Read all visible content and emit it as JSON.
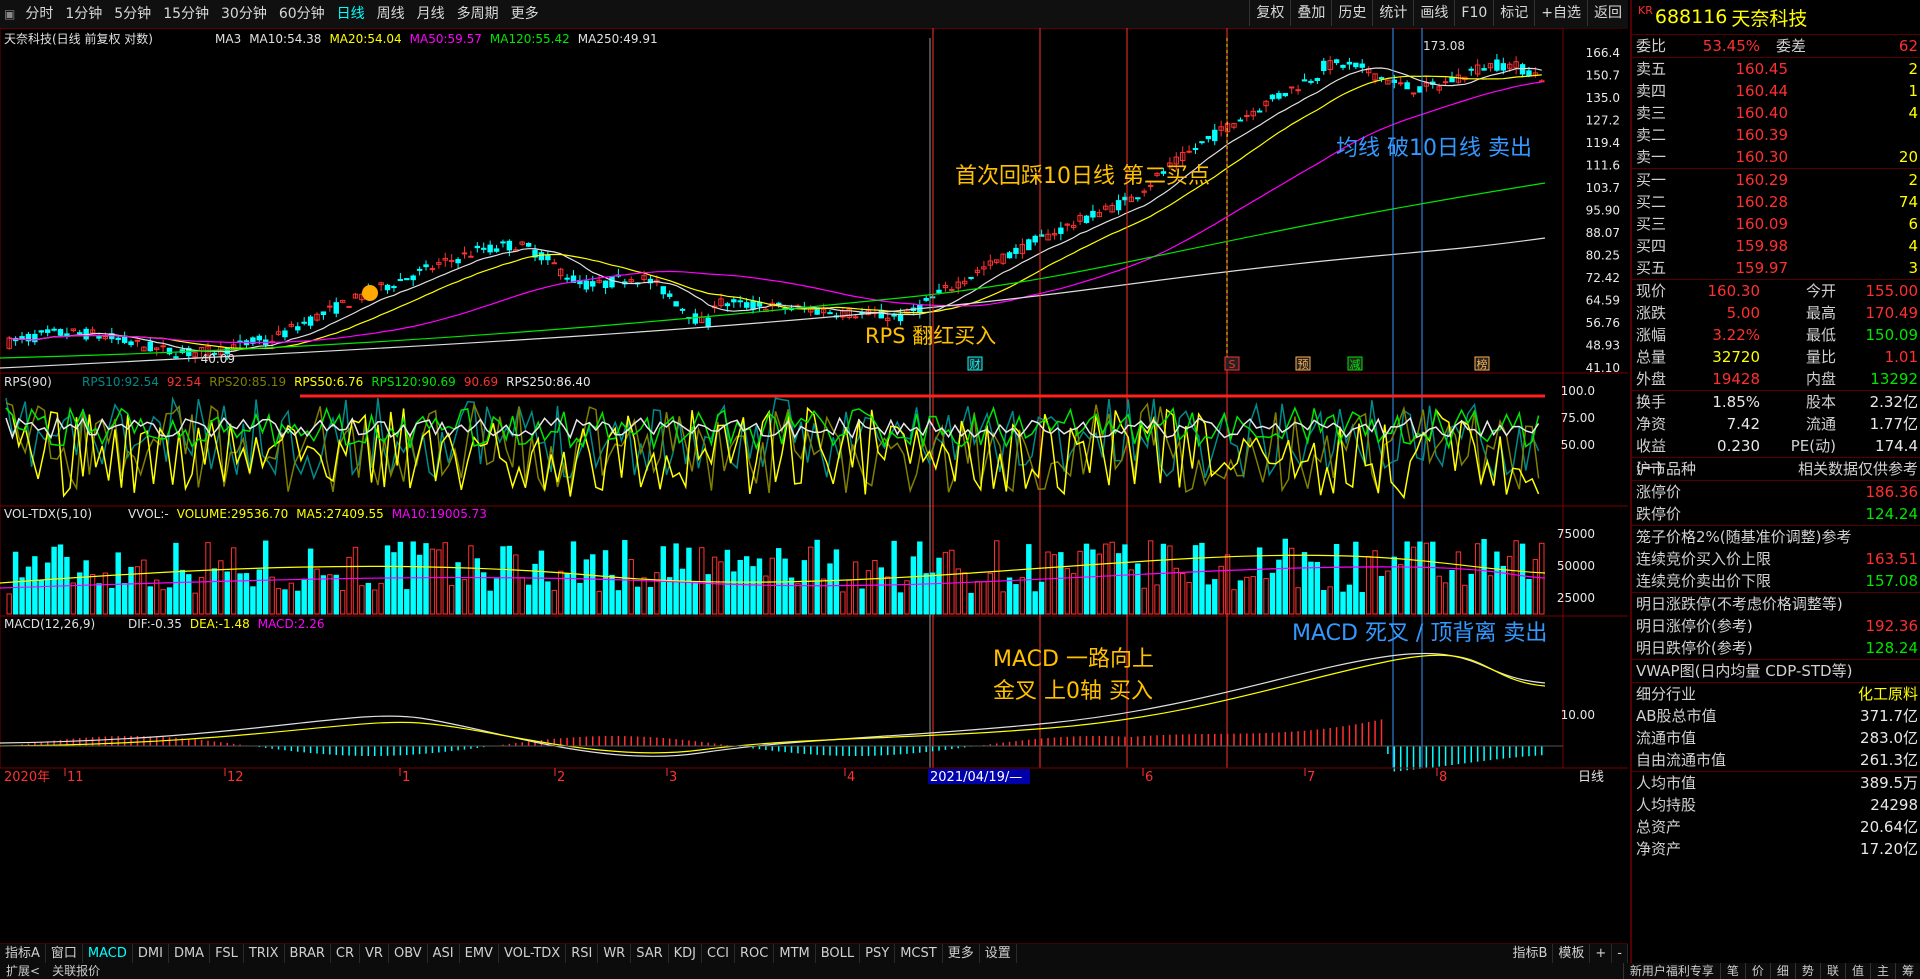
{
  "toolbar": {
    "left": [
      "分时",
      "1分钟",
      "5分钟",
      "15分钟",
      "30分钟",
      "60分钟",
      "日线",
      "周线",
      "月线",
      "多周期",
      "更多"
    ],
    "active_index": 6,
    "right": [
      "复权",
      "叠加",
      "历史",
      "统计",
      "画线",
      "F10",
      "标记",
      "+自选",
      "返回"
    ]
  },
  "main_chart": {
    "title": "天奈科技(日线 前复权 对数)",
    "ma": [
      {
        "name": "MA3",
        "value": "",
        "color": "#e0e0e0"
      },
      {
        "name": "MA10:",
        "value": "54.38",
        "color": "#e0e0e0"
      },
      {
        "name": "MA20:",
        "value": "54.04",
        "color": "#ffff00"
      },
      {
        "name": "MA50:",
        "value": "59.57",
        "color": "#ff00ff"
      },
      {
        "name": "MA120:",
        "value": "55.42",
        "color": "#00e600"
      },
      {
        "name": "MA250:",
        "value": "49.91",
        "color": "#e0e0e0"
      }
    ],
    "price_scale": [
      "166.4",
      "150.7",
      "135.0",
      "127.2",
      "119.4",
      "111.6",
      "103.7",
      "95.90",
      "88.07",
      "80.25",
      "72.42",
      "64.59",
      "56.76",
      "48.93",
      "41.10"
    ],
    "high_label": "173.08",
    "low_label": "40.09",
    "annotations": [
      {
        "text": "首次回踩10日线 第二买点",
        "color": "#ffc000"
      },
      {
        "text": "RPS 翻红买入",
        "color": "#ffc000"
      },
      {
        "text": "均线  破10日线  卖出",
        "color": "#3399ff"
      }
    ],
    "event_markers": [
      "财",
      "S",
      "预",
      "减",
      "榜"
    ]
  },
  "rps_panel": {
    "title": "RPS(90)",
    "items": [
      {
        "name": "RPS10:",
        "value": "92.54",
        "color": "#008b8b"
      },
      {
        "name": "",
        "value": "92.54",
        "color": "#ff3030"
      },
      {
        "name": "RPS20:",
        "value": "85.19",
        "color": "#808000"
      },
      {
        "name": "RPS50:",
        "value": "6.76",
        "color": "#ffff00"
      },
      {
        "name": "RPS120:",
        "value": "90.69",
        "color": "#00e600"
      },
      {
        "name": "",
        "value": "90.69",
        "color": "#ff3030"
      },
      {
        "name": "RPS250:",
        "value": "86.40",
        "color": "#e8e8e8"
      }
    ],
    "scale": [
      "100.0",
      "75.00",
      "50.00"
    ]
  },
  "vol_panel": {
    "title": "VOL-TDX(5,10)",
    "items": [
      {
        "name": "VVOL:",
        "value": "-",
        "color": "#e0e0e0"
      },
      {
        "name": "VOLUME:",
        "value": "29536.70",
        "color": "#ffff00"
      },
      {
        "name": "MA5:",
        "value": "27409.55",
        "color": "#ffff00"
      },
      {
        "name": "MA10:",
        "value": "19005.73",
        "color": "#ff00ff"
      }
    ],
    "scale": [
      "75000",
      "50000",
      "25000"
    ]
  },
  "macd_panel": {
    "title": "MACD(12,26,9)",
    "items": [
      {
        "name": "DIF:",
        "value": "-0.35",
        "color": "#e0e0e0"
      },
      {
        "name": "DEA:",
        "value": "-1.48",
        "color": "#ffff00"
      },
      {
        "name": "MACD:",
        "value": "2.26",
        "color": "#ff00ff"
      }
    ],
    "scale": [
      "10.00"
    ],
    "annotations": [
      {
        "text": "MACD  一路向上",
        "color": "#ffc000"
      },
      {
        "text": "金叉  上0轴  买入",
        "color": "#ffc000"
      },
      {
        "text": "MACD 死叉 / 顶背离  卖出",
        "color": "#3399ff"
      }
    ]
  },
  "x_axis": {
    "year": "2020年",
    "labels": [
      "11",
      "12",
      "1",
      "2",
      "3",
      "4",
      "6",
      "7",
      "8"
    ],
    "cursor_date": "2021/04/19/—",
    "period": "日线"
  },
  "indicator_tabs": {
    "items": [
      "指标A",
      "窗口",
      "MACD",
      "DMI",
      "DMA",
      "FSL",
      "TRIX",
      "BRAR",
      "CR",
      "VR",
      "OBV",
      "ASI",
      "EMV",
      "VOL-TDX",
      "RSI",
      "WR",
      "SAR",
      "KDJ",
      "CCI",
      "ROC",
      "MTM",
      "BOLL",
      "PSY",
      "MCST",
      "更多",
      "设置"
    ],
    "active_index": 2,
    "right": [
      "指标B",
      "模板",
      "+",
      "-"
    ]
  },
  "statusbar": {
    "left": [
      "扩展<",
      "关联报价"
    ],
    "right": [
      "新用户福利专享",
      "笔",
      "价",
      "细",
      "势",
      "联",
      "值",
      "主",
      "筹"
    ]
  },
  "quote": {
    "kr": "KR",
    "code": "688116",
    "name": "天奈科技",
    "weibi_label": "委比",
    "weibi_value": "53.45%",
    "weicha_label": "委差",
    "weicha_value": "62",
    "asks": [
      {
        "label": "卖五",
        "price": "160.45",
        "vol": "2"
      },
      {
        "label": "卖四",
        "price": "160.44",
        "vol": "1"
      },
      {
        "label": "卖三",
        "price": "160.40",
        "vol": "4"
      },
      {
        "label": "卖二",
        "price": "160.39",
        "vol": ""
      },
      {
        "label": "卖一",
        "price": "160.30",
        "vol": "20"
      }
    ],
    "bids": [
      {
        "label": "买一",
        "price": "160.29",
        "vol": "2"
      },
      {
        "label": "买二",
        "price": "160.28",
        "vol": "74"
      },
      {
        "label": "买三",
        "price": "160.09",
        "vol": "6"
      },
      {
        "label": "买四",
        "price": "159.98",
        "vol": "4"
      },
      {
        "label": "买五",
        "price": "159.97",
        "vol": "3"
      }
    ],
    "stats": [
      {
        "a": "现价",
        "b": "160.30",
        "bc": "#ff3030",
        "c": "今开",
        "d": "155.00",
        "dc": "#ff3030"
      },
      {
        "a": "涨跌",
        "b": "5.00",
        "bc": "#ff3030",
        "c": "最高",
        "d": "170.49",
        "dc": "#ff3030"
      },
      {
        "a": "涨幅",
        "b": "3.22%",
        "bc": "#ff3030",
        "c": "最低",
        "d": "150.09",
        "dc": "#00e600"
      },
      {
        "a": "总量",
        "b": "32720",
        "bc": "#ffff00",
        "c": "量比",
        "d": "1.01",
        "dc": "#ff3030"
      },
      {
        "a": "外盘",
        "b": "19428",
        "bc": "#ff3030",
        "c": "内盘",
        "d": "13292",
        "dc": "#00e600"
      }
    ],
    "stats2": [
      {
        "a": "换手",
        "b": "1.85%",
        "c": "股本",
        "d": "2.32亿"
      },
      {
        "a": "净资",
        "b": "7.42",
        "c": "流通",
        "d": "1.77亿"
      },
      {
        "a": "收益(一)",
        "b": "0.230",
        "c": "PE(动)",
        "d": "174.4"
      }
    ],
    "market_label": "沪市品种",
    "market_note": "相关数据仅供参考",
    "limits": [
      {
        "a": "涨停价",
        "d": "186.36",
        "dc": "#ff3030"
      },
      {
        "a": "跌停价",
        "d": "124.24",
        "dc": "#00e600"
      }
    ],
    "cage_title": "笼子价格2%(随基准价调整)参考",
    "cage": [
      {
        "a": "连续竞价买入价上限",
        "d": "163.51",
        "dc": "#ff3030"
      },
      {
        "a": "连续竞价卖出价下限",
        "d": "157.08",
        "dc": "#00e600"
      }
    ],
    "tomorrow_title": "明日涨跌停(不考虑价格调整等)",
    "tomorrow": [
      {
        "a": "明日涨停价(参考)",
        "d": "192.36",
        "dc": "#ff3030"
      },
      {
        "a": "明日跌停价(参考)",
        "d": "128.24",
        "dc": "#00e600"
      }
    ],
    "vwap_title": "VWAP图(日内均量 CDP-STD等)",
    "industry_label": "细分行业",
    "industry_value": "化工原料",
    "caps": [
      {
        "a": "AB股总市值",
        "d": "371.7亿"
      },
      {
        "a": "流通市值",
        "d": "283.0亿"
      },
      {
        "a": "自由流通市值",
        "d": "261.3亿"
      }
    ],
    "per": [
      {
        "a": "人均市值",
        "d": "389.5万"
      },
      {
        "a": "人均持股",
        "d": "24298"
      },
      {
        "a": "总资产",
        "d": "20.64亿"
      },
      {
        "a": "净资产",
        "d": "17.20亿"
      }
    ]
  }
}
